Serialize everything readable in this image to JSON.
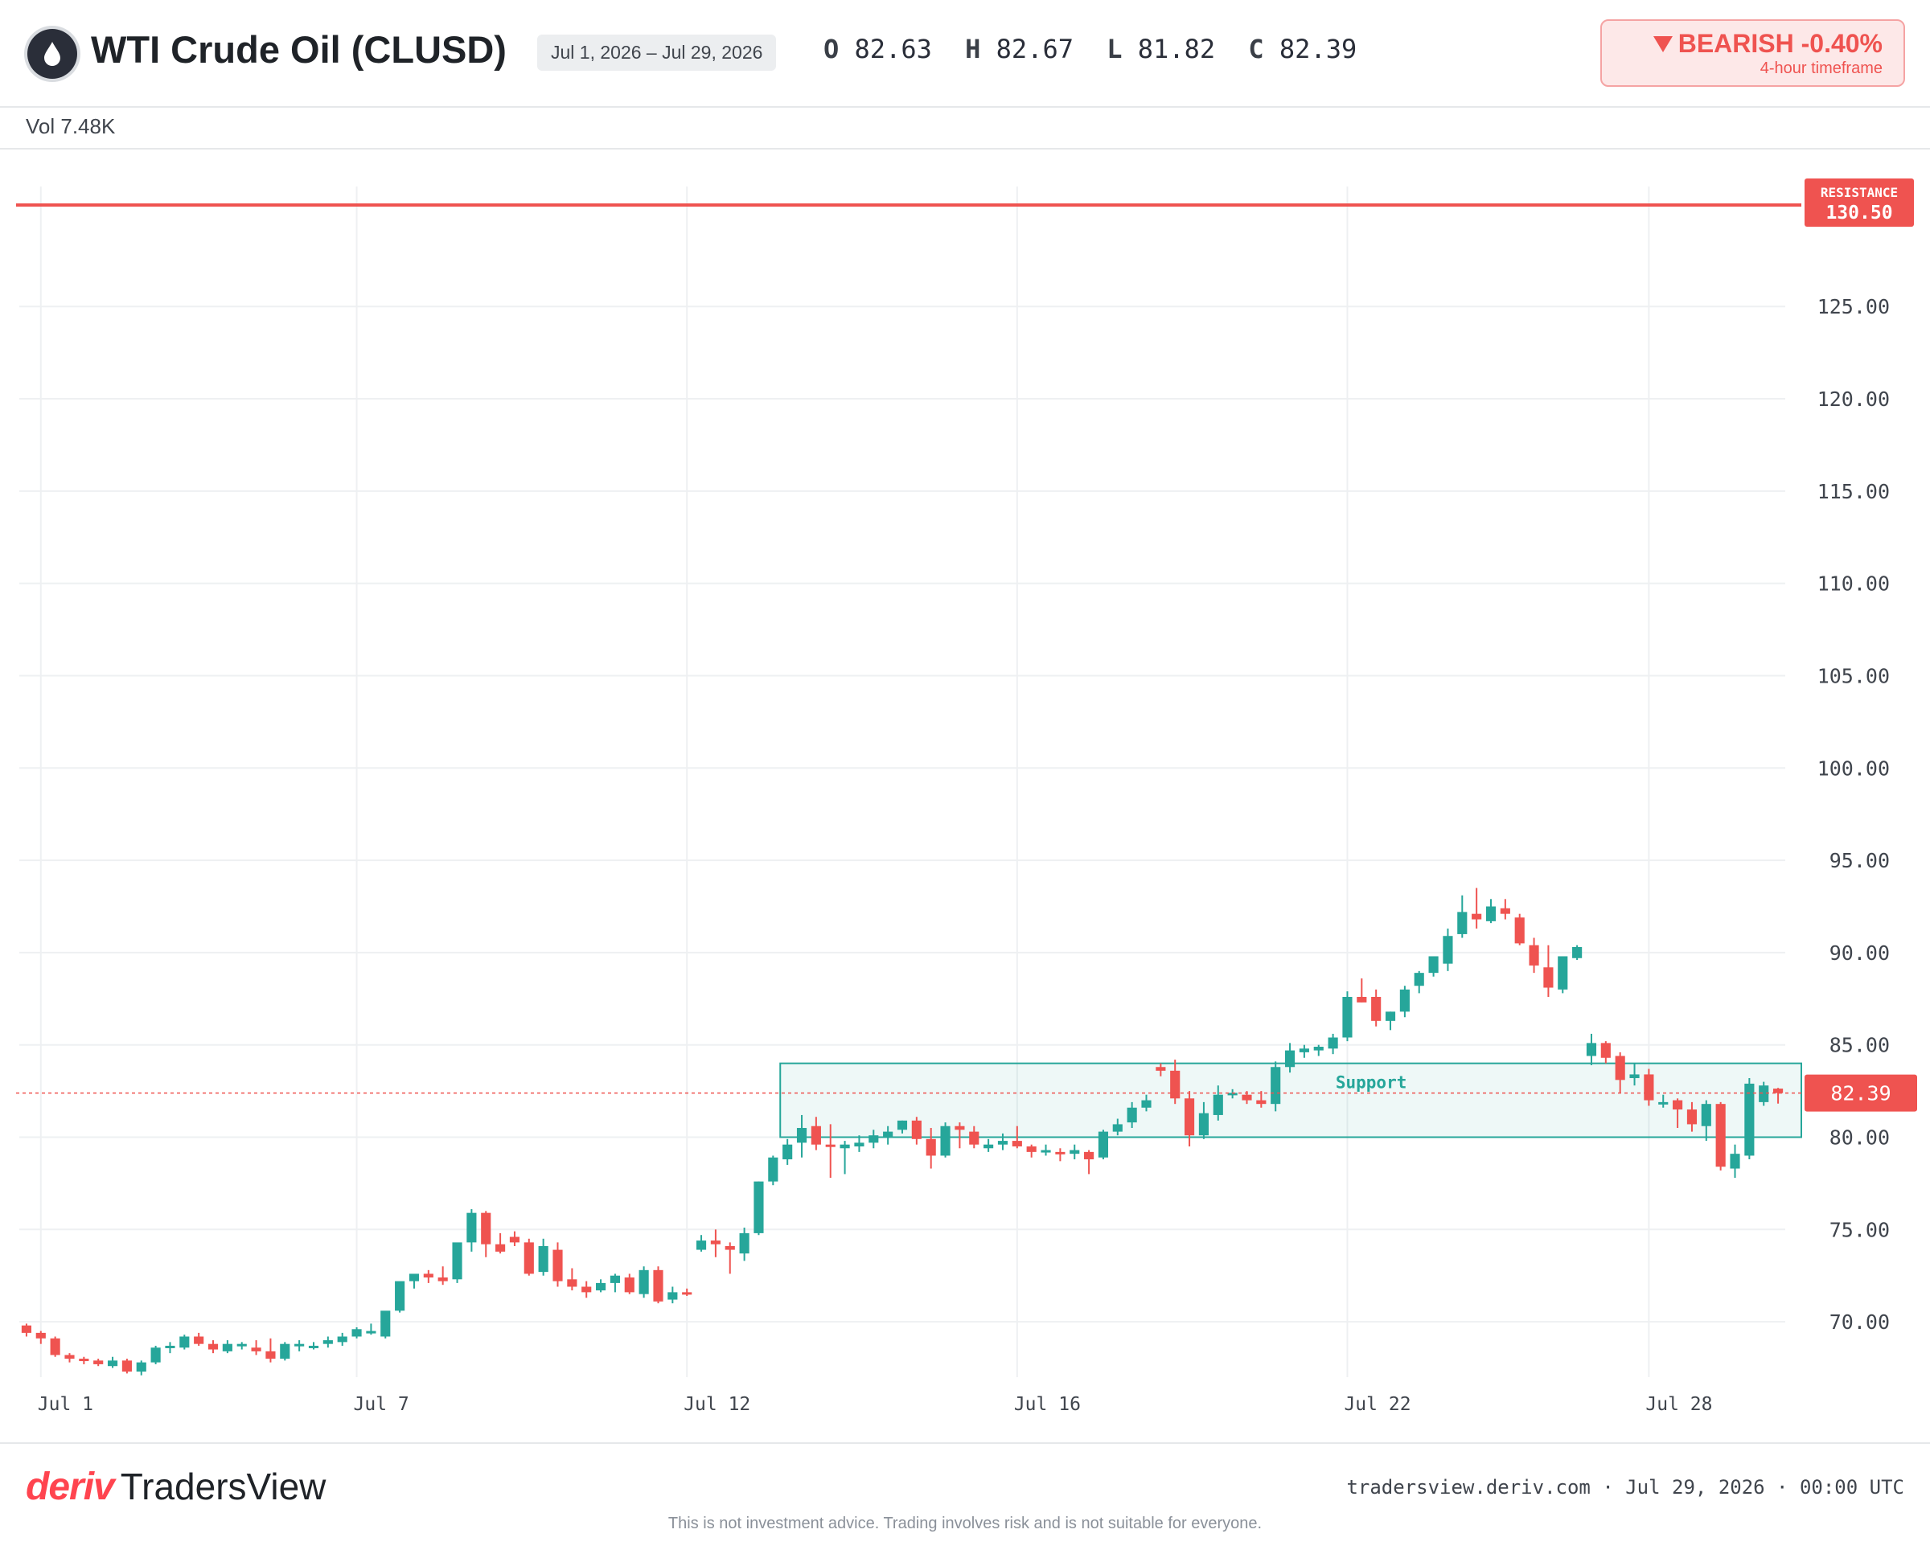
{
  "header": {
    "icon": "oil-drop-icon",
    "title": "WTI Crude Oil (CLUSD)",
    "date_range": "Jul 1, 2026 – Jul 29, 2026",
    "ohlc": {
      "o_label": "O",
      "o": "82.63",
      "h_label": "H",
      "h": "82.67",
      "l_label": "L",
      "l": "81.82",
      "c_label": "C",
      "c": "82.39"
    },
    "badge": {
      "icon": "triangle-down-icon",
      "text": "BEARISH -0.40%",
      "timeframe": "4-hour timeframe"
    }
  },
  "volume": {
    "text": "Vol 7.48K"
  },
  "footer": {
    "brand_deriv": "deriv",
    "brand_product": "TradersView",
    "meta": "tradersview.deriv.com · Jul 29, 2026 · 00:00 UTC",
    "disclaimer": "This is not investment advice. Trading involves risk and is not suitable for everyone."
  },
  "colors": {
    "up": "#26a69a",
    "down": "#ef5350",
    "resistance": "#ef5350",
    "support": "#26a69a",
    "grid": "#eef0f2"
  },
  "chart_data": {
    "type": "candlestick",
    "timeframe": "4-hour",
    "ylim": [
      67,
      131.5
    ],
    "y_ticks": [
      "70.00",
      "75.00",
      "80.00",
      "85.00",
      "90.00",
      "95.00",
      "100.00",
      "105.00",
      "110.00",
      "115.00",
      "120.00",
      "125.00"
    ],
    "y_tick_values": [
      70,
      75,
      80,
      85,
      90,
      95,
      100,
      105,
      110,
      115,
      120,
      125
    ],
    "x_ticks": [
      "Jul 1",
      "Jul 7",
      "Jul 12",
      "Jul 16",
      "Jul 22",
      "Jul 28"
    ],
    "x_tick_index": [
      1,
      23,
      46,
      69,
      92,
      113
    ],
    "resistance": {
      "label": "RESISTANCE",
      "value": 130.5,
      "value_text": "130.50"
    },
    "support": {
      "label": "Support",
      "low": 80.0,
      "high": 84.0,
      "start_index": 53,
      "end_index": 119
    },
    "last_price": {
      "value": 82.39,
      "text": "82.39"
    },
    "candles": [
      [
        69.8,
        69.9,
        69.2,
        69.4
      ],
      [
        69.4,
        69.5,
        68.8,
        69.1
      ],
      [
        69.1,
        69.2,
        68.1,
        68.2
      ],
      [
        68.2,
        68.3,
        67.8,
        68.0
      ],
      [
        68.0,
        68.1,
        67.7,
        67.9
      ],
      [
        67.9,
        68.0,
        67.6,
        67.7
      ],
      [
        67.6,
        68.1,
        67.5,
        67.9
      ],
      [
        67.9,
        68.0,
        67.2,
        67.3
      ],
      [
        67.3,
        67.9,
        67.1,
        67.8
      ],
      [
        67.8,
        68.7,
        67.7,
        68.6
      ],
      [
        68.6,
        68.9,
        68.3,
        68.7
      ],
      [
        68.6,
        69.3,
        68.5,
        69.2
      ],
      [
        69.2,
        69.4,
        68.7,
        68.8
      ],
      [
        68.8,
        69.0,
        68.3,
        68.5
      ],
      [
        68.4,
        69.0,
        68.3,
        68.8
      ],
      [
        68.7,
        68.9,
        68.5,
        68.8
      ],
      [
        68.6,
        69.0,
        68.2,
        68.4
      ],
      [
        68.4,
        69.1,
        67.8,
        68.0
      ],
      [
        68.0,
        68.9,
        67.9,
        68.8
      ],
      [
        68.7,
        69.0,
        68.4,
        68.8
      ],
      [
        68.7,
        68.9,
        68.5,
        68.7
      ],
      [
        68.8,
        69.2,
        68.6,
        69.0
      ],
      [
        68.9,
        69.4,
        68.7,
        69.2
      ],
      [
        69.2,
        69.7,
        69.1,
        69.6
      ],
      [
        69.4,
        69.9,
        69.3,
        69.5
      ],
      [
        69.2,
        70.5,
        69.1,
        70.6
      ],
      [
        70.6,
        72.1,
        70.5,
        72.2
      ],
      [
        72.2,
        72.5,
        71.8,
        72.6
      ],
      [
        72.6,
        72.8,
        72.1,
        72.4
      ],
      [
        72.4,
        73.0,
        72.0,
        72.2
      ],
      [
        72.3,
        74.1,
        72.1,
        74.3
      ],
      [
        74.3,
        76.1,
        73.8,
        75.9
      ],
      [
        75.9,
        76.0,
        73.5,
        74.2
      ],
      [
        74.2,
        74.8,
        73.7,
        73.8
      ],
      [
        74.6,
        74.9,
        74.1,
        74.3
      ],
      [
        74.3,
        74.5,
        72.5,
        72.6
      ],
      [
        72.7,
        74.5,
        72.5,
        74.1
      ],
      [
        73.9,
        74.3,
        71.9,
        72.2
      ],
      [
        72.3,
        72.9,
        71.7,
        71.9
      ],
      [
        71.9,
        72.2,
        71.3,
        71.6
      ],
      [
        71.7,
        72.3,
        71.6,
        72.1
      ],
      [
        72.1,
        72.6,
        71.6,
        72.5
      ],
      [
        72.4,
        72.6,
        71.5,
        71.6
      ],
      [
        71.5,
        73.0,
        71.3,
        72.8
      ],
      [
        72.8,
        73.0,
        71.0,
        71.1
      ],
      [
        71.2,
        71.9,
        71.0,
        71.6
      ],
      [
        71.6,
        71.8,
        71.4,
        71.5
      ],
      [
        73.9,
        74.7,
        73.8,
        74.4
      ],
      [
        74.4,
        75.0,
        73.5,
        74.2
      ],
      [
        74.1,
        74.3,
        72.6,
        73.9
      ],
      [
        73.7,
        75.1,
        73.3,
        74.8
      ],
      [
        74.8,
        77.6,
        74.7,
        77.6
      ],
      [
        77.6,
        79.0,
        77.4,
        78.9
      ],
      [
        78.8,
        79.9,
        78.5,
        79.6
      ],
      [
        79.7,
        81.2,
        78.9,
        80.5
      ],
      [
        80.6,
        81.1,
        79.3,
        79.6
      ],
      [
        79.6,
        80.7,
        77.8,
        79.5
      ],
      [
        79.4,
        79.8,
        78.0,
        79.6
      ],
      [
        79.5,
        80.1,
        79.2,
        79.7
      ],
      [
        79.7,
        80.4,
        79.4,
        80.1
      ],
      [
        80.0,
        80.6,
        79.6,
        80.3
      ],
      [
        80.4,
        80.9,
        80.2,
        80.9
      ],
      [
        80.9,
        81.1,
        79.6,
        79.9
      ],
      [
        79.9,
        80.5,
        78.3,
        79.0
      ],
      [
        79.0,
        80.8,
        78.9,
        80.6
      ],
      [
        80.6,
        80.8,
        79.4,
        80.4
      ],
      [
        80.3,
        80.6,
        79.4,
        79.6
      ],
      [
        79.4,
        79.9,
        79.2,
        79.6
      ],
      [
        79.6,
        80.2,
        79.3,
        79.8
      ],
      [
        79.8,
        80.6,
        79.4,
        79.5
      ],
      [
        79.5,
        79.6,
        78.9,
        79.2
      ],
      [
        79.2,
        79.6,
        79.0,
        79.3
      ],
      [
        79.2,
        79.4,
        78.7,
        79.1
      ],
      [
        79.1,
        79.6,
        78.8,
        79.3
      ],
      [
        79.2,
        79.3,
        78.0,
        78.8
      ],
      [
        78.9,
        80.4,
        78.8,
        80.3
      ],
      [
        80.3,
        81.0,
        80.1,
        80.7
      ],
      [
        80.8,
        81.9,
        80.5,
        81.6
      ],
      [
        81.6,
        82.3,
        81.4,
        82.0
      ],
      [
        83.8,
        84.0,
        83.3,
        83.6
      ],
      [
        83.6,
        84.2,
        81.8,
        82.1
      ],
      [
        82.1,
        82.5,
        79.5,
        80.1
      ],
      [
        80.1,
        81.9,
        79.9,
        81.3
      ],
      [
        81.2,
        82.8,
        80.9,
        82.3
      ],
      [
        82.3,
        82.6,
        82.1,
        82.4
      ],
      [
        82.3,
        82.5,
        81.8,
        82.0
      ],
      [
        82.0,
        82.5,
        81.6,
        81.8
      ],
      [
        81.8,
        84.1,
        81.4,
        83.8
      ],
      [
        83.8,
        85.1,
        83.5,
        84.7
      ],
      [
        84.6,
        85.0,
        84.3,
        84.8
      ],
      [
        84.7,
        85.0,
        84.4,
        84.9
      ],
      [
        84.8,
        85.6,
        84.5,
        85.4
      ],
      [
        85.4,
        87.9,
        85.2,
        87.6
      ],
      [
        87.6,
        88.6,
        87.3,
        87.3
      ],
      [
        87.6,
        88.0,
        86.0,
        86.3
      ],
      [
        86.3,
        86.8,
        85.8,
        86.8
      ],
      [
        86.8,
        88.2,
        86.5,
        88.0
      ],
      [
        88.2,
        89.0,
        87.8,
        88.9
      ],
      [
        88.9,
        89.8,
        88.7,
        89.8
      ],
      [
        89.4,
        91.3,
        89.0,
        90.9
      ],
      [
        91.0,
        93.1,
        90.8,
        92.2
      ],
      [
        92.1,
        93.5,
        91.3,
        91.8
      ],
      [
        91.7,
        92.9,
        91.6,
        92.5
      ],
      [
        92.4,
        92.9,
        91.8,
        92.1
      ],
      [
        91.9,
        92.1,
        90.4,
        90.5
      ],
      [
        90.4,
        90.8,
        88.9,
        89.3
      ],
      [
        89.2,
        90.4,
        87.6,
        88.1
      ],
      [
        88.0,
        89.8,
        87.8,
        89.8
      ],
      [
        89.7,
        90.4,
        89.6,
        90.3
      ],
      [
        84.4,
        85.6,
        83.9,
        85.1
      ],
      [
        85.1,
        85.2,
        84.0,
        84.3
      ],
      [
        84.4,
        84.6,
        82.4,
        83.1
      ],
      [
        83.2,
        84.0,
        82.8,
        83.4
      ],
      [
        83.4,
        83.7,
        81.7,
        82.0
      ],
      [
        81.9,
        82.3,
        81.6,
        81.9
      ],
      [
        82.0,
        82.1,
        80.5,
        81.5
      ],
      [
        81.5,
        81.9,
        80.3,
        80.7
      ],
      [
        80.6,
        82.0,
        79.8,
        81.8
      ],
      [
        81.8,
        81.9,
        78.2,
        78.4
      ],
      [
        78.3,
        79.6,
        77.8,
        79.1
      ],
      [
        79.0,
        83.2,
        78.8,
        82.9
      ],
      [
        81.9,
        83.0,
        81.7,
        82.8
      ],
      [
        82.63,
        82.67,
        81.82,
        82.39
      ]
    ]
  }
}
